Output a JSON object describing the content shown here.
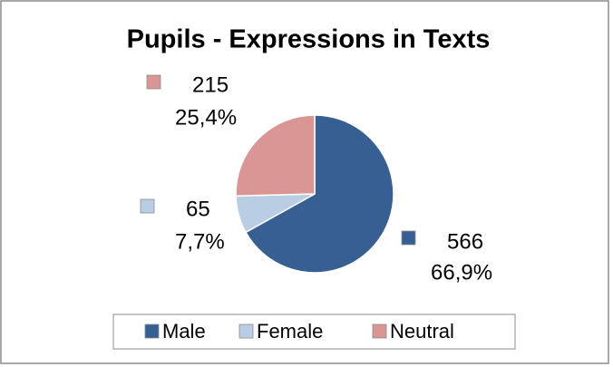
{
  "chart_data": {
    "type": "pie",
    "title": "Pupils - Expressions in Texts",
    "categories": [
      "Male",
      "Female",
      "Neutral"
    ],
    "values": [
      566,
      65,
      215
    ],
    "percent_labels": [
      "66,9%",
      "7,7%",
      "25,4%"
    ],
    "colors": [
      "#375f92",
      "#b9cde5",
      "#d99694"
    ],
    "legend": "bottom"
  }
}
